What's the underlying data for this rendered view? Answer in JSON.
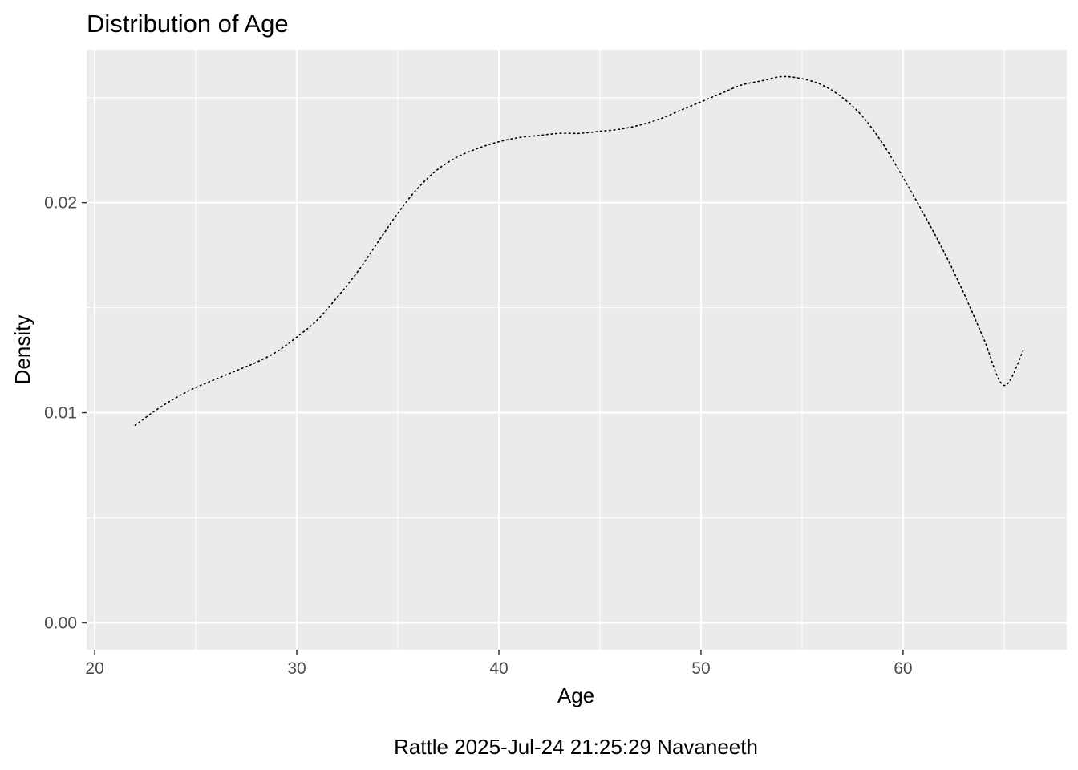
{
  "chart_data": {
    "type": "line",
    "title": "Distribution of Age",
    "xlabel": "Age",
    "ylabel": "Density",
    "caption": "Rattle 2025-Jul-24 21:25:29 Navaneeth",
    "xlim": [
      19.6,
      68.1
    ],
    "ylim": [
      -0.00128,
      0.02728
    ],
    "x_ticks": [
      20,
      30,
      40,
      50,
      60
    ],
    "x_tick_labels": [
      "20",
      "30",
      "40",
      "50",
      "60"
    ],
    "y_ticks": [
      0.0,
      0.01,
      0.02
    ],
    "y_tick_labels": [
      "0.00",
      "0.01",
      "0.02"
    ],
    "grid": true,
    "background": "#ebebeb",
    "grid_color": "#ffffff",
    "line_color": "#000000",
    "line_style": "dotted",
    "series": [
      {
        "x": [
          22,
          23,
          24,
          25,
          26,
          27,
          28,
          29,
          30,
          31,
          32,
          33,
          34,
          35,
          36,
          37,
          38,
          39,
          40,
          41,
          42,
          43,
          44,
          45,
          46,
          47,
          48,
          49,
          50,
          51,
          52,
          53,
          54,
          55,
          56,
          57,
          58,
          59,
          60,
          61,
          62,
          63,
          64,
          65,
          66
        ],
        "y": [
          0.0094,
          0.0101,
          0.0107,
          0.0112,
          0.0116,
          0.012,
          0.0124,
          0.0129,
          0.0136,
          0.0144,
          0.0155,
          0.0167,
          0.0181,
          0.0195,
          0.0207,
          0.0216,
          0.0222,
          0.0226,
          0.0229,
          0.0231,
          0.0232,
          0.0233,
          0.0233,
          0.0234,
          0.0235,
          0.0237,
          0.024,
          0.0244,
          0.0248,
          0.0252,
          0.0256,
          0.0258,
          0.026,
          0.0259,
          0.0256,
          0.025,
          0.0241,
          0.0228,
          0.0212,
          0.0195,
          0.0177,
          0.0157,
          0.0135,
          0.0113,
          0.0131
        ]
      }
    ]
  }
}
